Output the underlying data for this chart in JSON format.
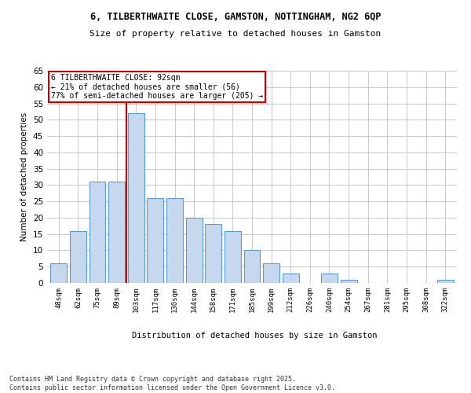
{
  "title_line1": "6, TILBERTHWAITE CLOSE, GAMSTON, NOTTINGHAM, NG2 6QP",
  "title_line2": "Size of property relative to detached houses in Gamston",
  "xlabel": "Distribution of detached houses by size in Gamston",
  "ylabel": "Number of detached properties",
  "bar_color": "#c5d8ed",
  "bar_edge_color": "#5b9bd5",
  "bar_width": 0.85,
  "property_line_value": 3.5,
  "annotation_text": "6 TILBERTHWAITE CLOSE: 92sqm\n← 21% of detached houses are smaller (56)\n77% of semi-detached houses are larger (205) →",
  "annotation_box_color": "#ffffff",
  "annotation_border_color": "#cc0000",
  "vline_color": "#cc0000",
  "categories": [
    "48sqm",
    "62sqm",
    "75sqm",
    "89sqm",
    "103sqm",
    "117sqm",
    "130sqm",
    "144sqm",
    "158sqm",
    "171sqm",
    "185sqm",
    "199sqm",
    "212sqm",
    "226sqm",
    "240sqm",
    "254sqm",
    "267sqm",
    "281sqm",
    "295sqm",
    "308sqm",
    "322sqm"
  ],
  "values": [
    6,
    16,
    31,
    31,
    52,
    26,
    26,
    20,
    18,
    16,
    10,
    6,
    3,
    0,
    3,
    1,
    0,
    0,
    0,
    0,
    1
  ],
  "ylim": [
    0,
    65
  ],
  "yticks": [
    0,
    5,
    10,
    15,
    20,
    25,
    30,
    35,
    40,
    45,
    50,
    55,
    60,
    65
  ],
  "footnote": "Contains HM Land Registry data © Crown copyright and database right 2025.\nContains public sector information licensed under the Open Government Licence v3.0.",
  "bg_color": "#ffffff",
  "grid_color": "#c0c0c0"
}
